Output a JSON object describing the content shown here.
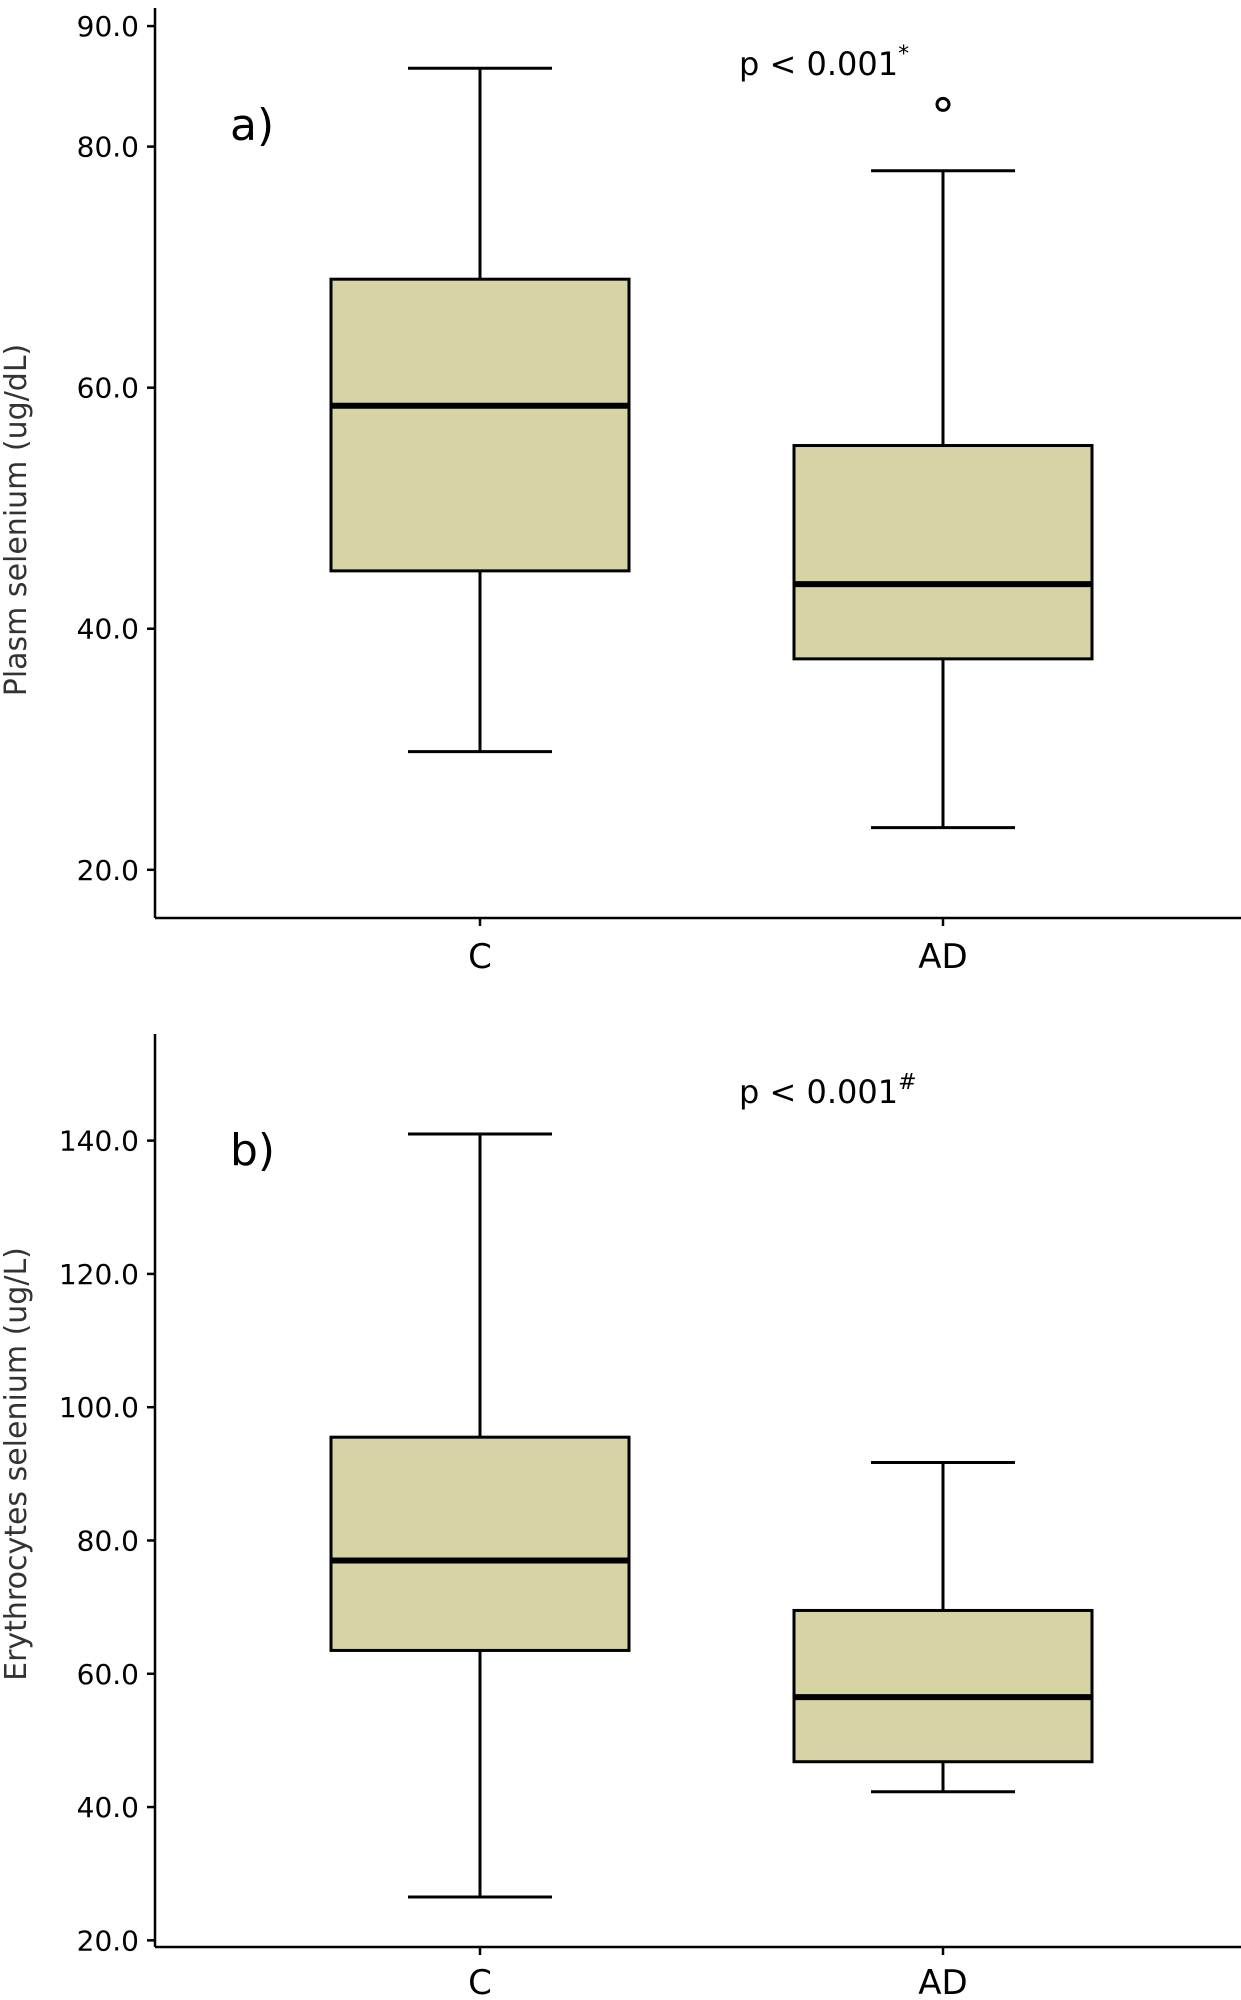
{
  "chart_data": [
    {
      "type": "box",
      "panel_label": "a)",
      "ylabel": "Plasm selenium (ug/dL)",
      "ylim": [
        16.0,
        91.5
      ],
      "yticks": [
        20.0,
        40.0,
        60.0,
        80.0,
        90.0
      ],
      "ytick_labels": [
        "20.0",
        "40.0",
        "60.0",
        "80.0",
        "90.0"
      ],
      "categories": [
        "C",
        "AD"
      ],
      "boxes": [
        {
          "category": "C",
          "whisker_low": 29.8,
          "q1": 44.8,
          "median": 58.5,
          "q3": 69.0,
          "whisker_high": 86.5,
          "outliers": []
        },
        {
          "category": "AD",
          "whisker_low": 23.5,
          "q1": 37.5,
          "median": 43.7,
          "q3": 55.2,
          "whisker_high": 78.0,
          "outliers": [
            83.5
          ]
        }
      ],
      "annotation": {
        "text": "p < 0.001",
        "superscript": "*"
      },
      "grid": false,
      "box_color": "#d6d3a4"
    },
    {
      "type": "box",
      "panel_label": "b)",
      "ylabel": "Erythrocytes selenium (ug/L)",
      "ylim": [
        19.0,
        156.0
      ],
      "yticks": [
        20.0,
        40.0,
        60.0,
        80.0,
        100.0,
        120.0,
        140.0
      ],
      "ytick_labels": [
        "20.0",
        "40.0",
        "60.0",
        "80.0",
        "100.0",
        "120.0",
        "140.0"
      ],
      "categories": [
        "C",
        "AD"
      ],
      "boxes": [
        {
          "category": "C",
          "whisker_low": 26.5,
          "q1": 63.5,
          "median": 77.0,
          "q3": 95.5,
          "whisker_high": 141.0,
          "outliers": []
        },
        {
          "category": "AD",
          "whisker_low": 42.3,
          "q1": 46.8,
          "median": 56.5,
          "q3": 69.5,
          "whisker_high": 91.7,
          "outliers": []
        }
      ],
      "annotation": {
        "text": "p < 0.001",
        "superscript": "#"
      },
      "grid": false,
      "box_color": "#d6d3a4"
    }
  ]
}
